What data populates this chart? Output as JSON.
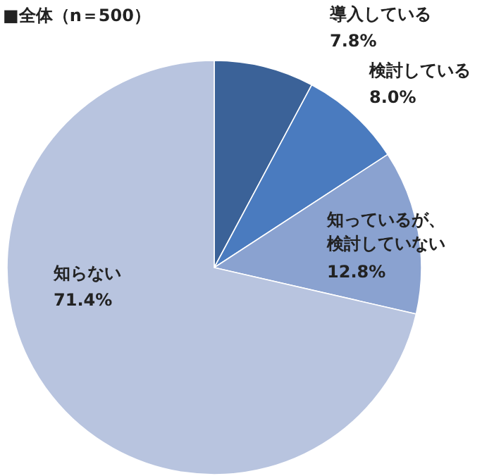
{
  "chart_data": {
    "type": "pie",
    "title": "■全体（n＝500）",
    "categories": [
      "導入している",
      "検討している",
      "知っているが、検討していない",
      "知らない"
    ],
    "values": [
      7.8,
      8.0,
      12.8,
      71.4
    ],
    "value_labels": [
      "7.8%",
      "8.0%",
      "12.8%",
      "71.4%"
    ],
    "colors": [
      "#3b6298",
      "#4a7bbf",
      "#8aa2d0",
      "#b8c4df"
    ]
  }
}
